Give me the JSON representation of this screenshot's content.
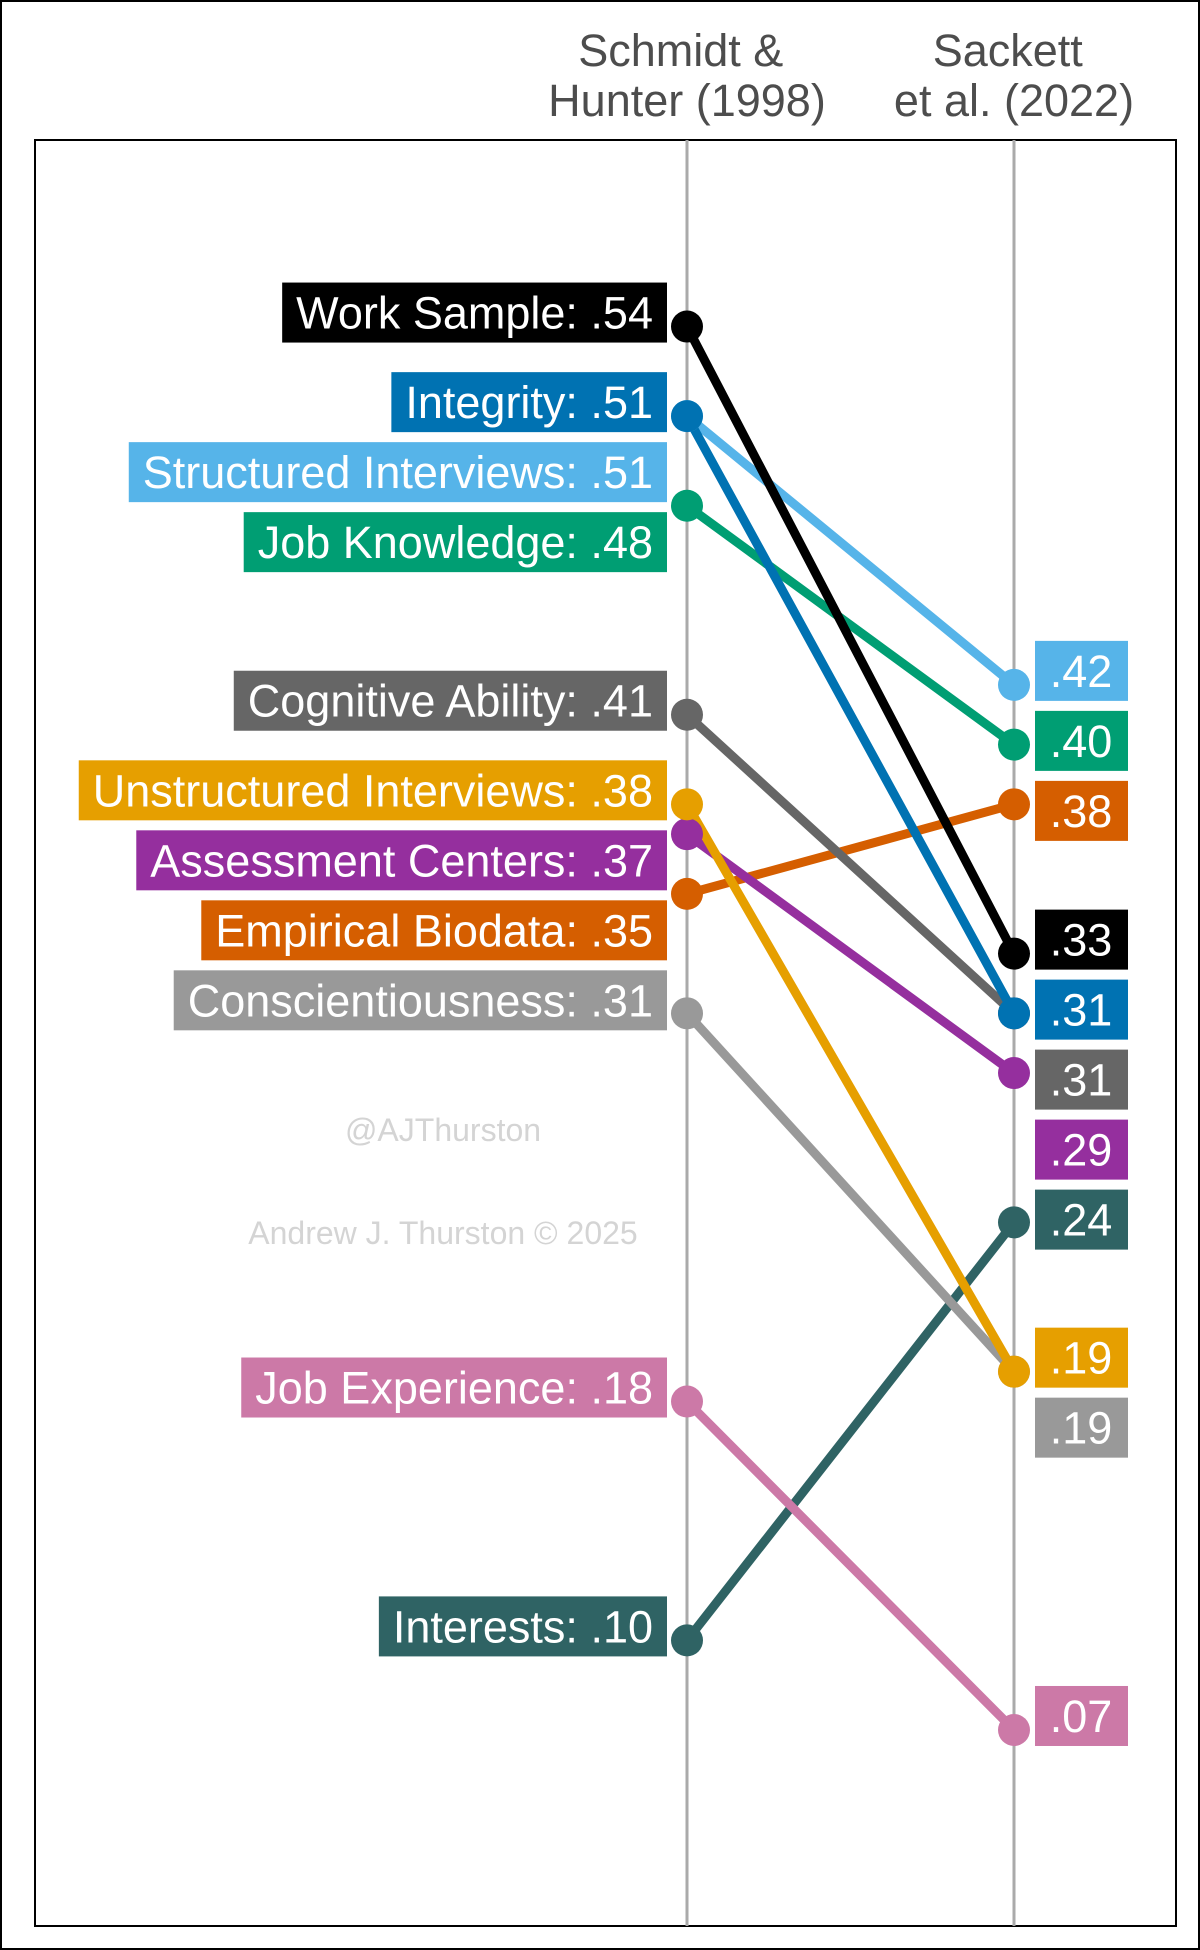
{
  "chart_data": {
    "type": "line",
    "columns": [
      {
        "name_lines": [
          "Schmidt &",
          "Hunter (1998)"
        ]
      },
      {
        "name_lines": [
          "Sackett",
          "et al. (2022)"
        ]
      }
    ],
    "ylim": [
      0.0,
      0.6
    ],
    "grid": false,
    "series": [
      {
        "name": "Work Sample",
        "color": "#000000",
        "values": [
          0.54,
          0.33
        ],
        "left_label": "Work Sample: .54",
        "right_label": ".33"
      },
      {
        "name": "Integrity",
        "color": "#0072B2",
        "values": [
          0.51,
          0.31
        ],
        "left_label": "Integrity: .51",
        "right_label": ".31"
      },
      {
        "name": "Structured Interviews",
        "color": "#56B4E9",
        "values": [
          0.51,
          0.42
        ],
        "left_label": "Structured Interviews: .51",
        "right_label": ".42"
      },
      {
        "name": "Job Knowledge",
        "color": "#009E73",
        "values": [
          0.48,
          0.4
        ],
        "left_label": "Job Knowledge: .48",
        "right_label": ".40"
      },
      {
        "name": "Cognitive Ability",
        "color": "#666666",
        "values": [
          0.41,
          0.31
        ],
        "left_label": "Cognitive Ability: .41",
        "right_label": ".31"
      },
      {
        "name": "Unstructured Interviews",
        "color": "#E69F00",
        "values": [
          0.38,
          0.19
        ],
        "left_label": "Unstructured Interviews: .38",
        "right_label": ".19"
      },
      {
        "name": "Assessment Centers",
        "color": "#952F9E",
        "values": [
          0.37,
          0.29
        ],
        "left_label": "Assessment Centers: .37",
        "right_label": ".29"
      },
      {
        "name": "Empirical Biodata",
        "color": "#D55E00",
        "values": [
          0.35,
          0.38
        ],
        "left_label": "Empirical Biodata: .35",
        "right_label": ".38"
      },
      {
        "name": "Conscientiousness",
        "color": "#999999",
        "values": [
          0.31,
          0.19
        ],
        "left_label": "Conscientiousness: .31",
        "right_label": ".19"
      },
      {
        "name": "Job Experience",
        "color": "#CC79A7",
        "values": [
          0.18,
          0.07
        ],
        "left_label": "Job Experience: .18",
        "right_label": ".07"
      },
      {
        "name": "Interests",
        "color": "#2F6364",
        "values": [
          0.1,
          0.24
        ],
        "left_label": "Interests: .10",
        "right_label": ".24"
      }
    ],
    "annotations": [
      "@AJThurston",
      "Andrew J. Thurston © 2025"
    ]
  }
}
